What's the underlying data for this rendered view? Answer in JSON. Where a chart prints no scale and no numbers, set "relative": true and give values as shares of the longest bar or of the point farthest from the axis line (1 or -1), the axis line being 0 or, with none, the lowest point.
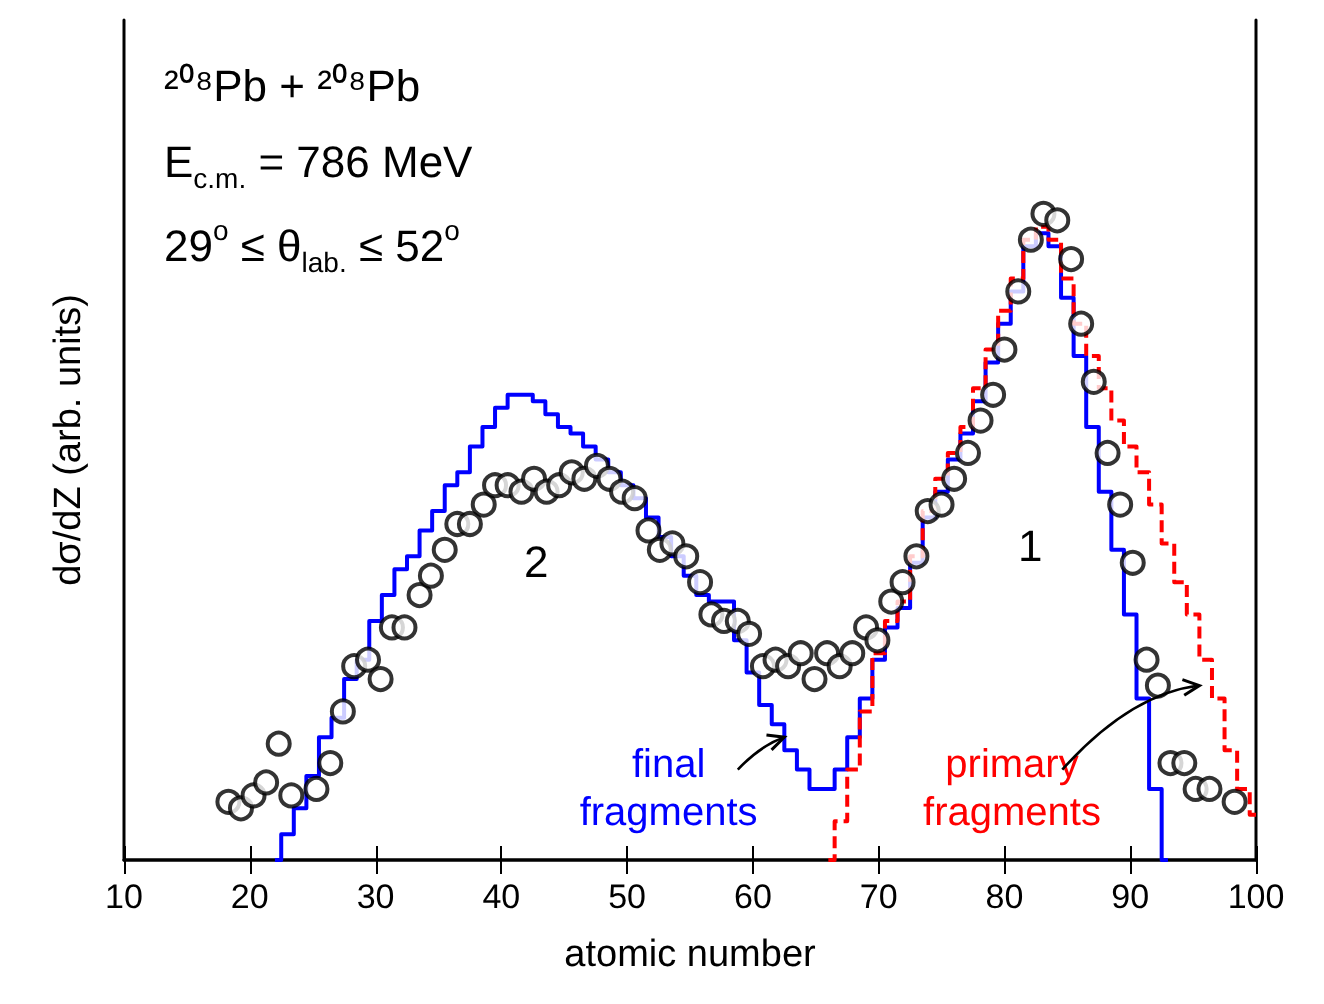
{
  "chart_data": {
    "type": "step",
    "xlabel": "atomic number",
    "ylabel": "dσ/dZ (arb. units)",
    "relative": true,
    "xlim": [
      10,
      100
    ],
    "xticks": [
      10,
      20,
      30,
      40,
      50,
      60,
      70,
      80,
      90,
      100
    ],
    "annotations": [
      "²⁰⁸Pb + ²⁰⁸Pb",
      "E$_{c.m.}$ = 786 MeV",
      "29$^{o}$ ≤ θ$_{lab.}$ ≤ 52$^{o}$",
      "1",
      "2"
    ],
    "series": [
      {
        "name": "final fragments",
        "color": "#0000ff",
        "x": [
          22,
          23,
          24,
          25,
          26,
          27,
          28,
          29,
          30,
          31,
          32,
          33,
          34,
          35,
          36,
          37,
          38,
          39,
          40,
          41,
          42,
          43,
          44,
          45,
          46,
          47,
          48,
          49,
          50,
          51,
          52,
          53,
          54,
          55,
          56,
          57,
          58,
          59,
          60,
          61,
          62,
          63,
          64,
          65,
          66,
          67,
          68,
          69,
          70,
          71,
          72,
          73,
          74,
          75,
          76,
          77,
          78,
          79,
          80,
          81,
          82,
          83,
          84,
          85,
          86,
          87,
          88,
          89,
          90,
          91,
          92,
          93
        ],
        "values": [
          0,
          0.04,
          0.08,
          0.13,
          0.19,
          0.22,
          0.28,
          0.31,
          0.37,
          0.41,
          0.45,
          0.47,
          0.51,
          0.54,
          0.58,
          0.6,
          0.64,
          0.67,
          0.7,
          0.72,
          0.72,
          0.71,
          0.69,
          0.67,
          0.66,
          0.64,
          0.62,
          0.6,
          0.58,
          0.56,
          0.53,
          0.5,
          0.47,
          0.44,
          0.41,
          0.4,
          0.4,
          0.34,
          0.29,
          0.24,
          0.21,
          0.17,
          0.14,
          0.11,
          0.11,
          0.14,
          0.19,
          0.25,
          0.31,
          0.36,
          0.39,
          0.46,
          0.53,
          0.57,
          0.62,
          0.66,
          0.71,
          0.77,
          0.83,
          0.88,
          0.95,
          0.97,
          0.95,
          0.87,
          0.78,
          0.67,
          0.57,
          0.48,
          0.38,
          0.25,
          0.11,
          0
        ]
      },
      {
        "name": "primary fragments",
        "color": "#ff0000",
        "line_style": "dashed",
        "x": [
          66,
          67,
          68,
          69,
          70,
          71,
          72,
          73,
          74,
          75,
          76,
          77,
          78,
          79,
          80,
          81,
          82,
          83,
          84,
          85,
          86,
          87,
          88,
          89,
          90,
          91,
          92,
          93,
          94,
          95,
          96,
          97,
          98,
          99,
          100
        ],
        "values": [
          0,
          0.06,
          0.14,
          0.23,
          0.32,
          0.37,
          0.4,
          0.47,
          0.54,
          0.59,
          0.63,
          0.67,
          0.73,
          0.79,
          0.85,
          0.9,
          0.96,
          0.98,
          0.96,
          0.9,
          0.83,
          0.78,
          0.73,
          0.68,
          0.64,
          0.6,
          0.55,
          0.49,
          0.43,
          0.38,
          0.31,
          0.25,
          0.17,
          0.11,
          0.07
        ]
      },
      {
        "type": "scatter",
        "color": "#000000",
        "marker": "circle",
        "x": [
          18.3,
          19.3,
          20.3,
          21.3,
          22.3,
          23.3,
          25.3,
          26.4,
          27.4,
          28.3,
          29.4,
          30.4,
          31.3,
          32.3,
          33.5,
          34.4,
          35.5,
          36.5,
          37.5,
          38.6,
          39.5,
          40.5,
          41.6,
          42.6,
          43.6,
          44.6,
          45.6,
          46.6,
          47.6,
          48.6,
          49.6,
          50.6,
          51.7,
          52.6,
          53.6,
          54.7,
          55.8,
          56.7,
          57.7,
          58.8,
          59.7,
          60.8,
          61.8,
          62.8,
          63.8,
          64.9,
          65.9,
          66.9,
          67.9,
          69.0,
          69.9,
          71.0,
          71.9,
          73.0,
          73.9,
          75.0,
          76.0,
          77.1,
          78.1,
          79.1,
          80.0,
          81.1,
          82.1,
          83.1,
          84.2,
          85.3,
          86.1,
          87.1,
          88.2,
          89.2,
          90.2,
          91.3,
          92.2,
          93.2,
          94.3,
          95.2,
          96.3,
          98.3
        ],
        "values": [
          0.09,
          0.08,
          0.1,
          0.12,
          0.18,
          0.1,
          0.11,
          0.15,
          0.23,
          0.3,
          0.31,
          0.28,
          0.36,
          0.36,
          0.41,
          0.44,
          0.48,
          0.52,
          0.52,
          0.55,
          0.58,
          0.58,
          0.57,
          0.59,
          0.57,
          0.58,
          0.6,
          0.59,
          0.61,
          0.59,
          0.57,
          0.56,
          0.51,
          0.48,
          0.49,
          0.47,
          0.43,
          0.38,
          0.37,
          0.37,
          0.35,
          0.3,
          0.31,
          0.3,
          0.32,
          0.28,
          0.32,
          0.3,
          0.32,
          0.36,
          0.34,
          0.4,
          0.43,
          0.47,
          0.54,
          0.55,
          0.59,
          0.63,
          0.68,
          0.72,
          0.79,
          0.88,
          0.96,
          1,
          0.99,
          0.93,
          0.83,
          0.74,
          0.63,
          0.55,
          0.46,
          0.31,
          0.27,
          0.15,
          0.15,
          0.11,
          0.11,
          0.09
        ]
      }
    ]
  }
}
